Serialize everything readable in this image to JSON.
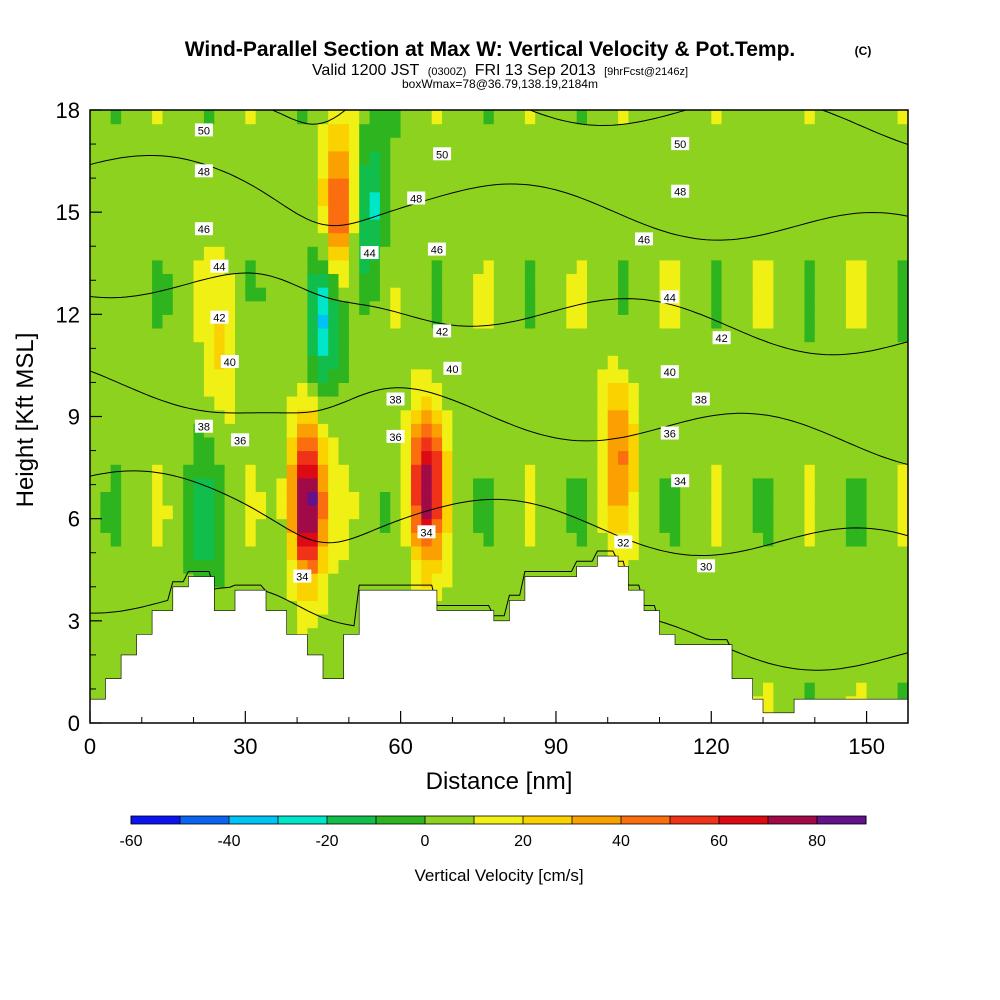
{
  "header": {
    "title": "Wind-Parallel Section at Max W: Vertical Velocity & Pot.Temp.",
    "title_mark": "(C)",
    "valid_prefix": "Valid 1200 JST",
    "valid_utc": "(0300Z)",
    "valid_date": "FRI 13 Sep 2013",
    "forecast": "[9hrFcst@2146z]",
    "box_info": "boxWmax=78@36.79,138.19,2184m"
  },
  "chart_data": {
    "type": "heatmap",
    "xlabel": "Distance [nm]",
    "ylabel": "Height [Kft MSL]",
    "xlim": [
      0,
      158
    ],
    "ylim": [
      0,
      18
    ],
    "x_ticks": [
      0,
      30,
      60,
      90,
      120,
      150
    ],
    "y_ticks": [
      0,
      3,
      6,
      9,
      12,
      15,
      18
    ],
    "colorbar": {
      "label": "Vertical Velocity [cm/s]",
      "min": -60,
      "max": 90,
      "step": 10,
      "tick_labels": [
        -60,
        -40,
        -20,
        0,
        20,
        40,
        60,
        80
      ],
      "colors": [
        "#0a14f0",
        "#0a64f0",
        "#00c3f5",
        "#00e6c8",
        "#12be4b",
        "#2db41e",
        "#8cd21e",
        "#f0f014",
        "#fad200",
        "#faa000",
        "#fa6e0f",
        "#f03219",
        "#dc0a14",
        "#a00a46",
        "#64128c"
      ]
    },
    "field_peaks": [
      {
        "x": 42,
        "y": 6.5,
        "w": 88
      },
      {
        "x": 65,
        "y": 7.0,
        "w": 70
      },
      {
        "x": 48,
        "y": 15.0,
        "w": 50
      },
      {
        "x": 102,
        "y": 8.0,
        "w": 35
      },
      {
        "x": 26,
        "y": 11.0,
        "w": 15
      },
      {
        "x": 45,
        "y": 12.0,
        "w": -38
      },
      {
        "x": 54,
        "y": 15.0,
        "w": -30
      },
      {
        "x": 22,
        "y": 6.0,
        "w": -15
      },
      {
        "x": 5,
        "y": 12.0,
        "w": -10
      }
    ],
    "terrain": [
      {
        "x": 0,
        "h": 0.7
      },
      {
        "x": 3,
        "h": 1.3
      },
      {
        "x": 6,
        "h": 2.0
      },
      {
        "x": 9,
        "h": 2.6
      },
      {
        "x": 12,
        "h": 3.3
      },
      {
        "x": 15,
        "h": 3.3
      },
      {
        "x": 16,
        "h": 4.0
      },
      {
        "x": 19,
        "h": 4.3
      },
      {
        "x": 24,
        "h": 3.3
      },
      {
        "x": 28,
        "h": 3.9
      },
      {
        "x": 34,
        "h": 3.3
      },
      {
        "x": 38,
        "h": 2.6
      },
      {
        "x": 42,
        "h": 2.0
      },
      {
        "x": 45,
        "h": 1.3
      },
      {
        "x": 49,
        "h": 2.6
      },
      {
        "x": 52,
        "h": 3.9
      },
      {
        "x": 60,
        "h": 3.9
      },
      {
        "x": 64,
        "h": 3.9
      },
      {
        "x": 67,
        "h": 3.3
      },
      {
        "x": 72,
        "h": 3.3
      },
      {
        "x": 78,
        "h": 3.0
      },
      {
        "x": 81,
        "h": 3.6
      },
      {
        "x": 84,
        "h": 4.3
      },
      {
        "x": 90,
        "h": 4.3
      },
      {
        "x": 94,
        "h": 4.6
      },
      {
        "x": 98,
        "h": 4.9
      },
      {
        "x": 102,
        "h": 4.6
      },
      {
        "x": 104,
        "h": 3.9
      },
      {
        "x": 107,
        "h": 3.3
      },
      {
        "x": 110,
        "h": 2.6
      },
      {
        "x": 113,
        "h": 2.3
      },
      {
        "x": 120,
        "h": 2.3
      },
      {
        "x": 124,
        "h": 1.3
      },
      {
        "x": 128,
        "h": 0.7
      },
      {
        "x": 130,
        "h": 0.3
      },
      {
        "x": 136,
        "h": 0.7
      },
      {
        "x": 158,
        "h": 0.7
      }
    ],
    "theta_contours": [
      30,
      32,
      34,
      36,
      38,
      40,
      42,
      44,
      46,
      48,
      50
    ],
    "theta_labels": [
      {
        "value": "50",
        "x": 22,
        "y": 17.4
      },
      {
        "value": "48",
        "x": 22,
        "y": 16.2
      },
      {
        "value": "46",
        "x": 22,
        "y": 14.5
      },
      {
        "value": "44",
        "x": 25,
        "y": 13.4
      },
      {
        "value": "42",
        "x": 25,
        "y": 11.9
      },
      {
        "value": "40",
        "x": 27,
        "y": 10.6
      },
      {
        "value": "38",
        "x": 22,
        "y": 8.7
      },
      {
        "value": "36",
        "x": 29,
        "y": 8.3
      },
      {
        "value": "34",
        "x": 41,
        "y": 4.3
      },
      {
        "value": "44",
        "x": 54,
        "y": 13.8
      },
      {
        "value": "50",
        "x": 68,
        "y": 16.7
      },
      {
        "value": "48",
        "x": 63,
        "y": 15.4
      },
      {
        "value": "46",
        "x": 67,
        "y": 13.9
      },
      {
        "value": "42",
        "x": 68,
        "y": 11.5
      },
      {
        "value": "40",
        "x": 70,
        "y": 10.4
      },
      {
        "value": "38",
        "x": 59,
        "y": 9.5
      },
      {
        "value": "36",
        "x": 59,
        "y": 8.4
      },
      {
        "value": "34",
        "x": 65,
        "y": 5.6
      },
      {
        "value": "50",
        "x": 114,
        "y": 17.0
      },
      {
        "value": "48",
        "x": 114,
        "y": 15.6
      },
      {
        "value": "46",
        "x": 107,
        "y": 14.2
      },
      {
        "value": "44",
        "x": 112,
        "y": 12.5
      },
      {
        "value": "42",
        "x": 122,
        "y": 11.3
      },
      {
        "value": "40",
        "x": 112,
        "y": 10.3
      },
      {
        "value": "38",
        "x": 118,
        "y": 9.5
      },
      {
        "value": "36",
        "x": 112,
        "y": 8.5
      },
      {
        "value": "34",
        "x": 114,
        "y": 7.1
      },
      {
        "value": "32",
        "x": 103,
        "y": 5.3
      },
      {
        "value": "30",
        "x": 119,
        "y": 4.6
      }
    ]
  }
}
